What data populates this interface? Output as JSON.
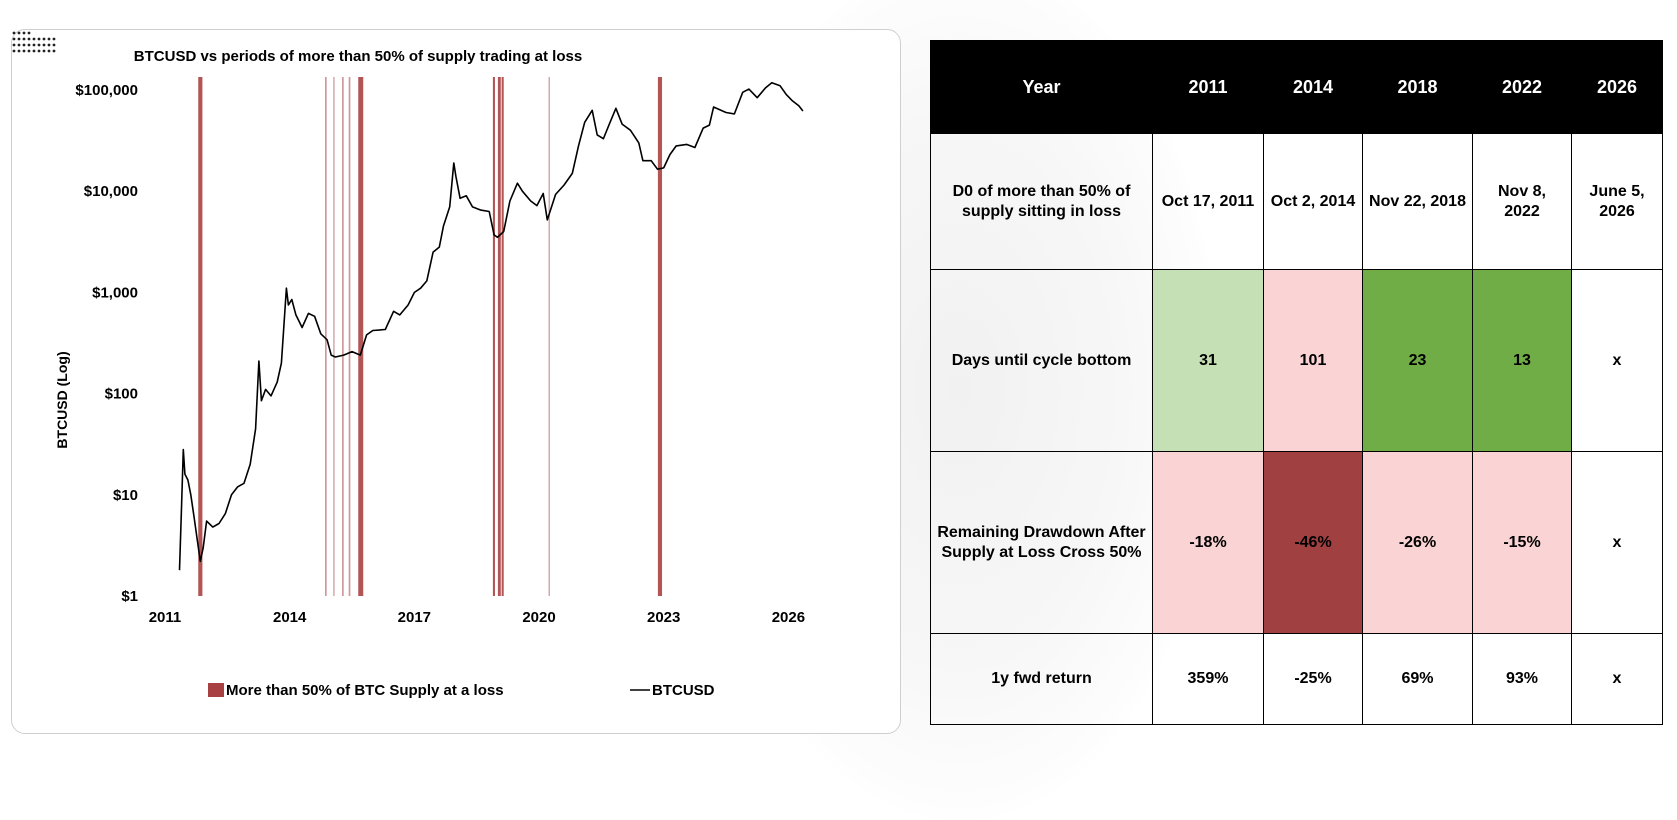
{
  "chart_data": {
    "type": "line",
    "title": "BTCUSD vs periods of more than 50% of supply trading at loss",
    "xlabel": "",
    "ylabel": "BTCUSD (Log)",
    "yscale": "log",
    "ylim": [
      1,
      150000
    ],
    "xlim": [
      2011.0,
      2026.4
    ],
    "x_ticks": [
      2011,
      2014,
      2017,
      2020,
      2023,
      2026
    ],
    "x_tick_labels": [
      "2011",
      "2014",
      "2017",
      "2020",
      "2023",
      "2026"
    ],
    "y_ticks": [
      1,
      10,
      100,
      1000,
      10000,
      100000
    ],
    "y_tick_labels": [
      "$1",
      "$10",
      "$100",
      "$1,000",
      "$10,000",
      "$100,000"
    ],
    "grid": false,
    "legend_position": "bottom",
    "legend": [
      "More than 50% of BTC Supply at a loss",
      "BTCUSD"
    ],
    "series": [
      {
        "name": "BTCUSD",
        "color": "#000000",
        "points": [
          [
            2011.35,
            1.8
          ],
          [
            2011.4,
            8
          ],
          [
            2011.44,
            28
          ],
          [
            2011.48,
            16
          ],
          [
            2011.55,
            14
          ],
          [
            2011.62,
            10
          ],
          [
            2011.7,
            6
          ],
          [
            2011.78,
            3.5
          ],
          [
            2011.85,
            2.2
          ],
          [
            2011.92,
            3
          ],
          [
            2012.0,
            5.5
          ],
          [
            2012.15,
            4.8
          ],
          [
            2012.3,
            5.2
          ],
          [
            2012.45,
            6.5
          ],
          [
            2012.6,
            10
          ],
          [
            2012.75,
            12
          ],
          [
            2012.9,
            13
          ],
          [
            2013.05,
            20
          ],
          [
            2013.18,
            45
          ],
          [
            2013.26,
            210
          ],
          [
            2013.32,
            85
          ],
          [
            2013.42,
            110
          ],
          [
            2013.55,
            95
          ],
          [
            2013.7,
            130
          ],
          [
            2013.8,
            200
          ],
          [
            2013.92,
            1100
          ],
          [
            2013.97,
            750
          ],
          [
            2014.05,
            850
          ],
          [
            2014.15,
            600
          ],
          [
            2014.3,
            450
          ],
          [
            2014.45,
            620
          ],
          [
            2014.6,
            580
          ],
          [
            2014.75,
            390
          ],
          [
            2014.9,
            340
          ],
          [
            2015.0,
            240
          ],
          [
            2015.1,
            230
          ],
          [
            2015.3,
            240
          ],
          [
            2015.5,
            260
          ],
          [
            2015.7,
            240
          ],
          [
            2015.85,
            380
          ],
          [
            2016.0,
            420
          ],
          [
            2016.3,
            430
          ],
          [
            2016.5,
            650
          ],
          [
            2016.65,
            600
          ],
          [
            2016.85,
            750
          ],
          [
            2017.0,
            1000
          ],
          [
            2017.15,
            1100
          ],
          [
            2017.3,
            1300
          ],
          [
            2017.45,
            2500
          ],
          [
            2017.6,
            2800
          ],
          [
            2017.7,
            4500
          ],
          [
            2017.85,
            7000
          ],
          [
            2017.95,
            19000
          ],
          [
            2018.0,
            14000
          ],
          [
            2018.1,
            8500
          ],
          [
            2018.25,
            9000
          ],
          [
            2018.4,
            7000
          ],
          [
            2018.6,
            6500
          ],
          [
            2018.8,
            6300
          ],
          [
            2018.92,
            3700
          ],
          [
            2019.0,
            3500
          ],
          [
            2019.15,
            4000
          ],
          [
            2019.3,
            8000
          ],
          [
            2019.48,
            12000
          ],
          [
            2019.6,
            10000
          ],
          [
            2019.8,
            8000
          ],
          [
            2019.95,
            7200
          ],
          [
            2020.1,
            9500
          ],
          [
            2020.2,
            5200
          ],
          [
            2020.4,
            9300
          ],
          [
            2020.6,
            11500
          ],
          [
            2020.8,
            15000
          ],
          [
            2020.95,
            28000
          ],
          [
            2021.1,
            48000
          ],
          [
            2021.28,
            63000
          ],
          [
            2021.4,
            36000
          ],
          [
            2021.55,
            33000
          ],
          [
            2021.7,
            47000
          ],
          [
            2021.85,
            66000
          ],
          [
            2022.0,
            46000
          ],
          [
            2022.2,
            40000
          ],
          [
            2022.4,
            30000
          ],
          [
            2022.5,
            20000
          ],
          [
            2022.7,
            20000
          ],
          [
            2022.85,
            16500
          ],
          [
            2023.0,
            17000
          ],
          [
            2023.15,
            23000
          ],
          [
            2023.3,
            28000
          ],
          [
            2023.55,
            29000
          ],
          [
            2023.75,
            27000
          ],
          [
            2023.95,
            42000
          ],
          [
            2024.1,
            45000
          ],
          [
            2024.2,
            68000
          ],
          [
            2024.5,
            60000
          ],
          [
            2024.7,
            58000
          ],
          [
            2024.9,
            95000
          ],
          [
            2025.05,
            102000
          ],
          [
            2025.25,
            84000
          ],
          [
            2025.45,
            105000
          ],
          [
            2025.6,
            118000
          ],
          [
            2025.8,
            110000
          ],
          [
            2025.95,
            90000
          ],
          [
            2026.1,
            78000
          ],
          [
            2026.25,
            70000
          ],
          [
            2026.35,
            62000
          ]
        ]
      }
    ],
    "loss_periods": {
      "name": "More than 50% of BTC Supply at a loss",
      "color": "#a84242",
      "ranges": [
        [
          2011.8,
          2011.9
        ],
        [
          2014.85,
          2014.89
        ],
        [
          2015.05,
          2015.08
        ],
        [
          2015.26,
          2015.3
        ],
        [
          2015.42,
          2015.46
        ],
        [
          2015.65,
          2015.77
        ],
        [
          2018.89,
          2018.94
        ],
        [
          2019.01,
          2019.08
        ],
        [
          2019.1,
          2019.15
        ],
        [
          2020.23,
          2020.26
        ],
        [
          2022.86,
          2022.96
        ]
      ]
    }
  },
  "table": {
    "header": [
      "Year",
      "2011",
      "2014",
      "2018",
      "2022",
      "2026"
    ],
    "rows": [
      {
        "label": "D0 of more than 50% of supply sitting in loss",
        "cells": [
          "Oct 17, 2011",
          "Oct 2, 2014",
          "Nov 22, 2018",
          "Nov 8, 2022",
          "June 5, 2026"
        ]
      },
      {
        "label": "Days until cycle bottom",
        "cells": [
          "31",
          "101",
          "23",
          "13",
          "x"
        ]
      },
      {
        "label": "Remaining Drawdown After Supply at Loss Cross 50%",
        "cells": [
          "-18%",
          "-46%",
          "-26%",
          "-15%",
          "x"
        ]
      },
      {
        "label": "1y fwd return",
        "cells": [
          "359%",
          "-25%",
          "69%",
          "93%",
          "x"
        ]
      }
    ],
    "cell_colors": {
      "light_green": "#c5e0b4",
      "green": "#70ad47",
      "light_red": "#fad4d4",
      "dark_red": "#a04040"
    }
  }
}
